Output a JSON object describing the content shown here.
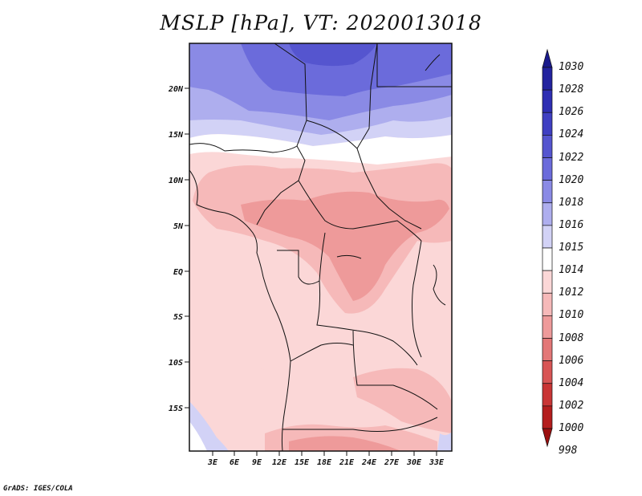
{
  "title": "MSLP [hPa], VT: 2020013018",
  "credit": "GrADS: IGES/COLA",
  "map": {
    "lat_labels": [
      "20N",
      "15N",
      "10N",
      "5N",
      "EQ",
      "5S",
      "10S",
      "15S"
    ],
    "lon_labels": [
      "3E",
      "6E",
      "9E",
      "12E",
      "15E",
      "18E",
      "21E",
      "24E",
      "27E",
      "30E",
      "33E"
    ]
  },
  "colorbar": {
    "levels": [
      "1030",
      "1028",
      "1026",
      "1024",
      "1022",
      "1020",
      "1018",
      "1016",
      "1015",
      "1014",
      "1012",
      "1010",
      "1008",
      "1006",
      "1004",
      "1002",
      "1000",
      "998"
    ],
    "colors": [
      "#1a1a8c",
      "#23239f",
      "#2e2eb3",
      "#3f3fc2",
      "#5555cf",
      "#6b6bdb",
      "#8a8ae5",
      "#aeaeee",
      "#d2d2f6",
      "#ffffff",
      "#fbd7d7",
      "#f6b9b9",
      "#ee9a9a",
      "#e37777",
      "#d85555",
      "#c93535",
      "#b41d1d",
      "#9b0f0f"
    ]
  }
}
